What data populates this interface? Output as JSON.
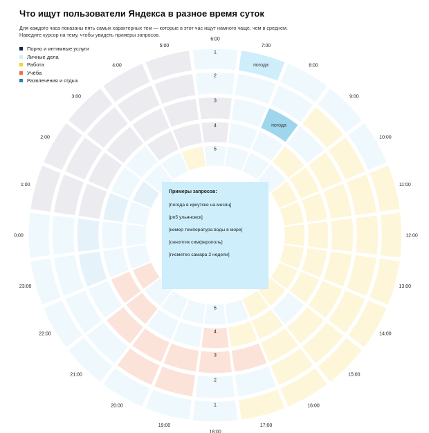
{
  "title": "Что ищут пользователи Яндекса в разное время суток",
  "subtitle": [
    "Для каждого часа показаны пять самых характерных тем — которые в этот час ищут намного чаще, чем в среднем.",
    "Наведите курсор на тему, чтобы увидеть примеры запросов."
  ],
  "legend": [
    {
      "label": "Порно и интимные услуги",
      "color": "#0b2a4a"
    },
    {
      "label": "Личные дела",
      "color": "#cfeefa"
    },
    {
      "label": "Работа",
      "color": "#f9cf2c"
    },
    {
      "label": "Учёба",
      "color": "#f26a3d"
    },
    {
      "label": "Развлечения и отдых",
      "color": "#2c7fb8"
    }
  ],
  "colors": {
    "porn": "#ececf0",
    "personal": "#eef8fd",
    "work": "#fef6d8",
    "study": "#fce3da",
    "fun": "#e6f2fa",
    "highlight": "#cdeefa",
    "highlight_strong": "#9ed6ee",
    "separator": "#ffffff"
  },
  "chart_data": {
    "type": "radial-heatmap",
    "hours": [
      "0:00",
      "1:00",
      "2:00",
      "3:00",
      "4:00",
      "5:00",
      "6:00",
      "7:00",
      "8:00",
      "9:00",
      "10:00",
      "11:00",
      "12:00",
      "13:00",
      "14:00",
      "15:00",
      "16:00",
      "17:00",
      "18:00",
      "19:00",
      "20:00",
      "21:00",
      "22:00",
      "23:00"
    ],
    "ranks": [
      1,
      2,
      3,
      4,
      5
    ],
    "categories": [
      "porn",
      "personal",
      "work",
      "study",
      "fun"
    ],
    "grid_category": [
      [
        "personal",
        "personal",
        "fun",
        "personal",
        "personal"
      ],
      [
        "porn",
        "porn",
        "porn",
        "fun",
        "personal"
      ],
      [
        "porn",
        "porn",
        "porn",
        "personal",
        "fun"
      ],
      [
        "porn",
        "porn",
        "porn",
        "personal",
        "personal"
      ],
      [
        "porn",
        "porn",
        "porn",
        "porn",
        "personal"
      ],
      [
        "porn",
        "porn",
        "porn",
        "porn",
        "work"
      ],
      [
        "personal",
        "personal",
        "porn",
        "porn",
        "personal"
      ],
      [
        "personal",
        "personal",
        "personal",
        "personal",
        "personal"
      ],
      [
        "personal",
        "personal",
        "personal",
        "personal",
        "personal"
      ],
      [
        "personal",
        "work",
        "personal",
        "work",
        "personal"
      ],
      [
        "personal",
        "work",
        "work",
        "work",
        "work"
      ],
      [
        "work",
        "work",
        "work",
        "work",
        "work"
      ],
      [
        "work",
        "work",
        "work",
        "work",
        "work"
      ],
      [
        "work",
        "work",
        "work",
        "work",
        "work"
      ],
      [
        "work",
        "work",
        "work",
        "work",
        "work"
      ],
      [
        "work",
        "work",
        "work",
        "personal",
        "work"
      ],
      [
        "work",
        "work",
        "work",
        "work",
        "work"
      ],
      [
        "work",
        "personal",
        "study",
        "work",
        "personal"
      ],
      [
        "personal",
        "personal",
        "study",
        "study",
        "personal"
      ],
      [
        "personal",
        "study",
        "study",
        "personal",
        "personal"
      ],
      [
        "personal",
        "study",
        "study",
        "personal",
        "personal"
      ],
      [
        "personal",
        "personal",
        "study",
        "study",
        "personal"
      ],
      [
        "personal",
        "personal",
        "personal",
        "study",
        "study"
      ],
      [
        "personal",
        "personal",
        "fun",
        "personal",
        "personal"
      ]
    ],
    "highlighted": [
      {
        "hour": "7:00",
        "rank": 1,
        "label": "погода"
      },
      {
        "hour": "8:00",
        "rank": 3,
        "label": "погода"
      }
    ],
    "tooltip": {
      "title": "Примеры запросов:",
      "examples": [
        "[погода в иркутске на месяц]",
        "[рп5 ульяновск]",
        "[кемер температура воды в море]",
        "[синоптик симферополь]",
        "[гисметео самара 2 недели]"
      ]
    }
  }
}
